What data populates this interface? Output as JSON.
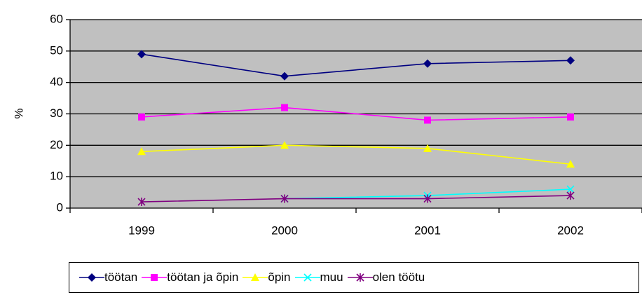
{
  "chart_data": {
    "type": "line",
    "title": "",
    "xlabel": "",
    "ylabel": "%",
    "ylim": [
      0,
      60
    ],
    "yticks": [
      0,
      10,
      20,
      30,
      40,
      50,
      60
    ],
    "categories": [
      "1999",
      "2000",
      "2001",
      "2002"
    ],
    "grid": "horizontal",
    "legend_position": "bottom",
    "plot_background": "#c0c0c0",
    "series": [
      {
        "name": "töötan",
        "color": "#000080",
        "marker": "diamond",
        "values": [
          49,
          42,
          46,
          47
        ]
      },
      {
        "name": "töötan ja õpin",
        "color": "#ff00ff",
        "marker": "square",
        "values": [
          29,
          32,
          28,
          29
        ]
      },
      {
        "name": "õpin",
        "color": "#ffff00",
        "marker": "triangle",
        "values": [
          18,
          20,
          19,
          14
        ]
      },
      {
        "name": "muu",
        "color": "#00ffff",
        "marker": "x",
        "values": [
          null,
          3,
          4,
          6
        ]
      },
      {
        "name": "olen töötu",
        "color": "#800080",
        "marker": "star",
        "values": [
          2,
          3,
          3,
          4
        ]
      }
    ]
  }
}
